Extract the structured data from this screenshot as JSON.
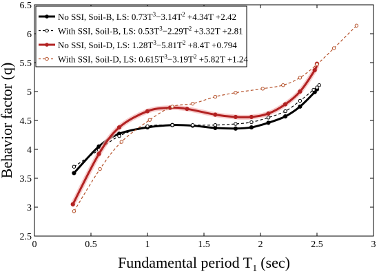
{
  "chart_data": {
    "type": "line",
    "xlabel": "Fundamental period T",
    "xlabel_sub": "1",
    "xlabel_unit": "(sec)",
    "ylabel": "Behavior factor (q)",
    "xlim": [
      0,
      3
    ],
    "ylim": [
      2.5,
      6.5
    ],
    "xticks": [
      "0",
      "0.5",
      "1",
      "1.5",
      "2",
      "2.5",
      "3"
    ],
    "xtick_values": [
      0,
      0.5,
      1,
      1.5,
      2,
      2.5,
      3
    ],
    "yticks": [
      "2.5",
      "3",
      "3.5",
      "4",
      "4.5",
      "5",
      "5.5",
      "6",
      "6.5"
    ],
    "ytick_values": [
      2.5,
      3,
      3.5,
      4,
      4.5,
      5,
      5.5,
      6,
      6.5
    ],
    "grid": false,
    "legend_position": "top-left",
    "series": [
      {
        "legend_parts": [
          {
            "t": "No SSI, Soil-B, LS: 0.73T"
          },
          {
            "t": "3",
            "sup": true
          },
          {
            "t": "−3.14T"
          },
          {
            "t": "2",
            "sup": true
          },
          {
            "t": " +4.34T +2.42"
          }
        ],
        "color": "#000000",
        "style": "solid-thick",
        "x": [
          0.35,
          0.57,
          0.75,
          1.0,
          1.22,
          1.4,
          1.6,
          1.78,
          1.92,
          2.07,
          2.22,
          2.35,
          2.48,
          2.5
        ],
        "y": [
          3.59,
          4.05,
          4.27,
          4.38,
          4.42,
          4.41,
          4.37,
          4.36,
          4.38,
          4.46,
          4.57,
          4.74,
          4.99,
          5.04
        ]
      },
      {
        "legend_parts": [
          {
            "t": "With SSI, Soil-B, LS: 0.53T"
          },
          {
            "t": "3",
            "sup": true
          },
          {
            "t": "−2.29T"
          },
          {
            "t": "2",
            "sup": true
          },
          {
            "t": " +3.32T +2.81"
          }
        ],
        "color": "#000000",
        "style": "dashed",
        "x": [
          0.35,
          0.57,
          0.75,
          1.0,
          1.22,
          1.4,
          1.6,
          1.78,
          1.92,
          2.07,
          2.22,
          2.35,
          2.47,
          2.5,
          2.52
        ],
        "y": [
          3.7,
          3.99,
          4.23,
          4.4,
          4.42,
          4.42,
          4.42,
          4.44,
          4.47,
          4.55,
          4.66,
          4.84,
          5.03,
          5.07,
          5.11
        ]
      },
      {
        "legend_parts": [
          {
            "t": "No SSI, Soil-D, LS: 1.28T"
          },
          {
            "t": "3",
            "sup": true
          },
          {
            "t": "−5.81T"
          },
          {
            "t": "2",
            "sup": true
          },
          {
            "t": " +8.4T +0.794"
          }
        ],
        "color": "#b22222",
        "style": "solid-thick",
        "x": [
          0.34,
          0.57,
          0.75,
          1.0,
          1.2,
          1.35,
          1.6,
          1.78,
          1.92,
          2.07,
          2.22,
          2.35,
          2.48,
          2.5
        ],
        "y": [
          3.05,
          3.92,
          4.38,
          4.66,
          4.72,
          4.7,
          4.6,
          4.56,
          4.56,
          4.62,
          4.78,
          5.0,
          5.37,
          5.48
        ]
      },
      {
        "legend_parts": [
          {
            "t": "With SSI, Soil-D, LS: 0.615T"
          },
          {
            "t": "3",
            "sup": true
          },
          {
            "t": "−3.19T"
          },
          {
            "t": "2",
            "sup": true
          },
          {
            "t": " +5.82T +1.24"
          }
        ],
        "color": "#b5512a",
        "style": "dashed",
        "x": [
          0.35,
          0.58,
          0.77,
          1.02,
          1.22,
          1.4,
          1.6,
          1.78,
          2.02,
          2.2,
          2.35,
          2.5,
          2.65,
          2.85
        ],
        "y": [
          2.93,
          3.66,
          4.13,
          4.51,
          4.74,
          4.79,
          4.91,
          4.98,
          5.05,
          5.11,
          5.24,
          5.47,
          5.75,
          6.14
        ]
      }
    ]
  }
}
